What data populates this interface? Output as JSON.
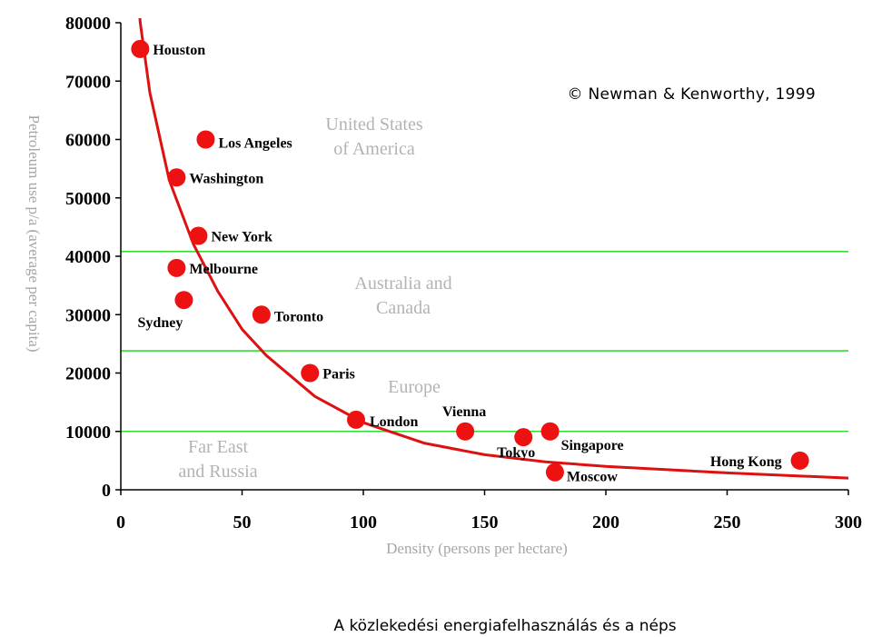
{
  "chart_data": {
    "type": "scatter",
    "title": "",
    "xlabel": "Density (persons per hectare)",
    "ylabel": "Petroleum use p/a (average per capita)",
    "xlim": [
      0,
      300
    ],
    "ylim": [
      0,
      80000
    ],
    "x_ticks": [
      0,
      50,
      100,
      150,
      200,
      250,
      300
    ],
    "y_ticks": [
      0,
      10000,
      20000,
      30000,
      40000,
      50000,
      60000,
      70000,
      80000
    ],
    "grid": false,
    "series": [
      {
        "type": "scatter",
        "color": "#ee1111",
        "points": [
          {
            "label": "Houston",
            "x": 8,
            "y": 75500
          },
          {
            "label": "Los Angeles",
            "x": 35,
            "y": 60000
          },
          {
            "label": "Washington",
            "x": 23,
            "y": 53500
          },
          {
            "label": "New York",
            "x": 32,
            "y": 43500
          },
          {
            "label": "Melbourne",
            "x": 23,
            "y": 38000
          },
          {
            "label": "Sydney",
            "x": 26,
            "y": 32500
          },
          {
            "label": "Toronto",
            "x": 58,
            "y": 30000
          },
          {
            "label": "Paris",
            "x": 78,
            "y": 20000
          },
          {
            "label": "London",
            "x": 97,
            "y": 12000
          },
          {
            "label": "Vienna",
            "x": 142,
            "y": 10000
          },
          {
            "label": "Tokyo",
            "x": 166,
            "y": 9000
          },
          {
            "label": "Singapore",
            "x": 177,
            "y": 10000
          },
          {
            "label": "Moscow",
            "x": 179,
            "y": 3000
          },
          {
            "label": "Hong Kong",
            "x": 280,
            "y": 5000
          }
        ]
      },
      {
        "type": "line",
        "color": "#dd1111",
        "curve": "fit",
        "x": [
          5,
          8,
          12,
          20,
          30,
          40,
          50,
          60,
          80,
          100,
          125,
          150,
          175,
          200,
          250,
          300
        ],
        "y": [
          95000,
          80000,
          68000,
          53000,
          42000,
          34000,
          27500,
          23000,
          16000,
          11500,
          8000,
          6000,
          4800,
          4000,
          2900,
          2000
        ]
      }
    ],
    "bands": [
      {
        "label_lines": [
          "United States",
          "of America"
        ],
        "y_min": 40800,
        "y_max": 80000,
        "line_color": "#33dd33"
      },
      {
        "label_lines": [
          "Australia and",
          "Canada"
        ],
        "y_min": 23800,
        "y_max": 40800,
        "line_color": "#33dd33"
      },
      {
        "label_lines": [
          "Europe"
        ],
        "y_min": 10000,
        "y_max": 23800,
        "line_color": "#33dd33"
      },
      {
        "label_lines": [
          "Far East",
          "and Russia"
        ],
        "y_min": 0,
        "y_max": 10000,
        "line_color": "#33dd33"
      }
    ],
    "band_lines": [
      40800,
      23800,
      10000
    ],
    "annotation": "© Newman & Kenworthy, 1999"
  },
  "caption": "A közlekedési energiafelhasználás és a néps"
}
